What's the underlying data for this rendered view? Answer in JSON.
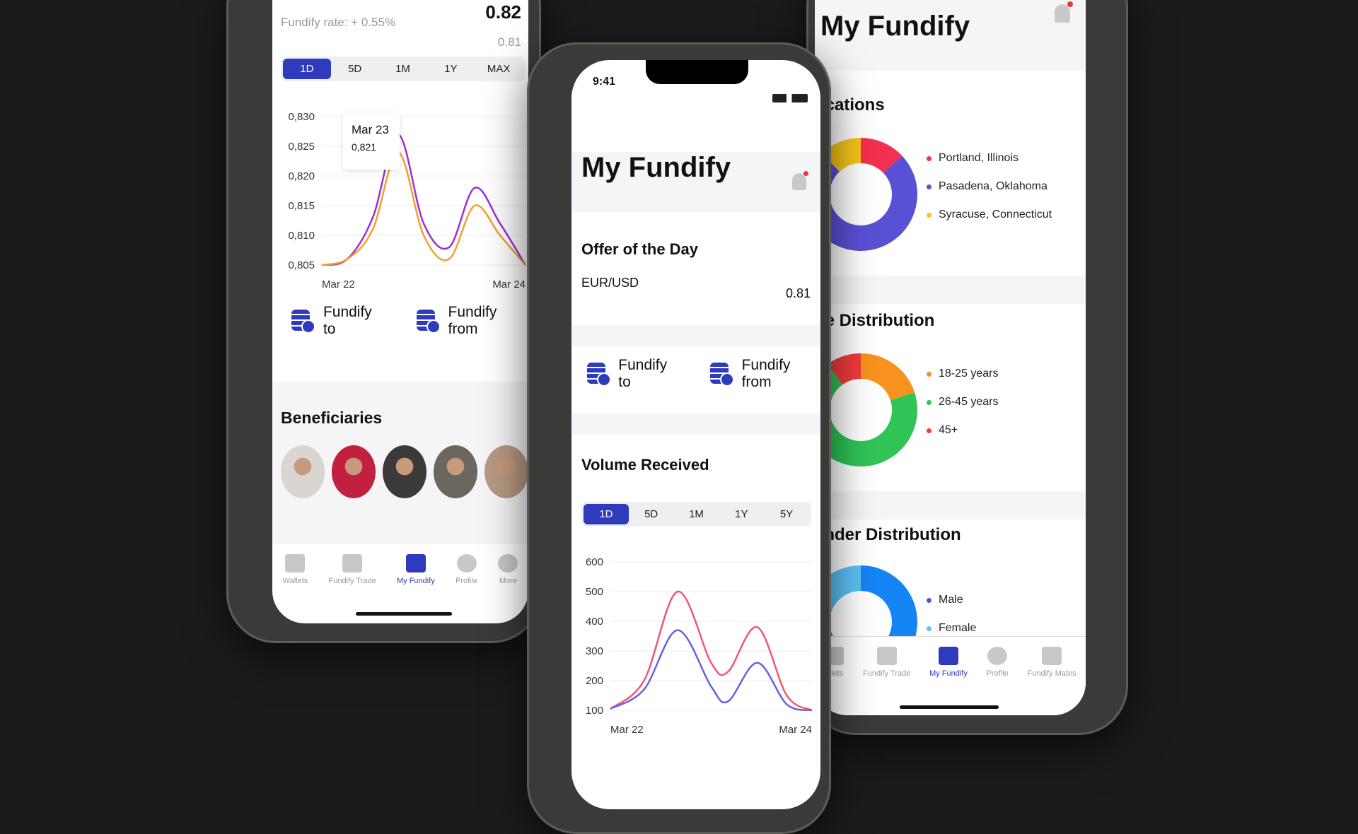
{
  "left_screen": {
    "rate_label": "Fundify rate: + 0.55%",
    "price_main": "0.82",
    "price_sub": "0.81",
    "ranges": [
      "1D",
      "5D",
      "1M",
      "1Y",
      "MAX"
    ],
    "active_range": "1D",
    "tooltip": {
      "date": "Mar 23",
      "value": "0,821"
    },
    "fundify_to": "Fundify to",
    "fundify_from": "Fundify from",
    "beneficiaries_title": "Beneficiaries",
    "avatar_colors": [
      "#d9d6d2",
      "#c2203f",
      "#3b3a38",
      "#6b6660",
      "#b79a83"
    ],
    "nav": [
      {
        "label": "Wallets",
        "icon": "wallet-icon"
      },
      {
        "label": "Fundify Trade",
        "icon": "gavel-icon"
      },
      {
        "label": "My Fundify",
        "icon": "dashboard-icon",
        "active": true
      },
      {
        "label": "Profile",
        "icon": "profile-icon"
      },
      {
        "label": "More",
        "icon": "more-icon"
      }
    ]
  },
  "middle_screen": {
    "time": "9:41",
    "title": "My Fundify",
    "offer_title": "Offer of the Day",
    "pair": "EUR/USD",
    "pair_value": "0.81",
    "fundify_to": "Fundify to",
    "fundify_from": "Fundify from",
    "volume_title": "Volume Received",
    "ranges": [
      "1D",
      "5D",
      "1M",
      "1Y",
      "5Y"
    ],
    "active_range": "1D"
  },
  "right_screen": {
    "title": "My Fundify",
    "locations_title": "ocations",
    "age_title": "ge Distribution",
    "gender_title": "ender Distribution",
    "nav": [
      {
        "label": "allets",
        "icon": "wallet-icon"
      },
      {
        "label": "Fundify Trade",
        "icon": "gavel-icon"
      },
      {
        "label": "My Fundify",
        "icon": "dashboard-icon",
        "active": true
      },
      {
        "label": "Profile",
        "icon": "profile-icon"
      },
      {
        "label": "Fundify Mates",
        "icon": "network-icon"
      }
    ]
  },
  "colors": {
    "accent": "#2f3bbd",
    "notification": "#e53935"
  },
  "chart_data": [
    {
      "type": "line",
      "title": "",
      "ylim": [
        0.805,
        0.83
      ],
      "yticks": [
        "0,830",
        "0,825",
        "0,820",
        "0,815",
        "0,810",
        "0,805"
      ],
      "xticks": [
        "Mar 22",
        "Mar 24"
      ],
      "x": [
        "Mar 22 00:00",
        "Mar 22 06:00",
        "Mar 22 12:00",
        "Mar 22 18:00",
        "Mar 23 00:00",
        "Mar 23 06:00",
        "Mar 23 12:00",
        "Mar 23 18:00",
        "Mar 24 00:00"
      ],
      "series": [
        {
          "color": "#9b30d9",
          "values": [
            0.805,
            0.806,
            0.813,
            0.827,
            0.812,
            0.808,
            0.818,
            0.812,
            0.805
          ]
        },
        {
          "color": "#f0a030",
          "values": [
            0.805,
            0.806,
            0.811,
            0.824,
            0.81,
            0.806,
            0.815,
            0.81,
            0.805
          ]
        }
      ]
    },
    {
      "type": "line",
      "title": "",
      "ylim": [
        100,
        600
      ],
      "yticks": [
        "600",
        "500",
        "400",
        "300",
        "200",
        "100"
      ],
      "xticks": [
        "Mar 22",
        "Mar 24"
      ],
      "x": [
        "Mar 22 00:00",
        "Mar 22 08:00",
        "Mar 22 16:00",
        "Mar 23 00:00",
        "Mar 23 04:00",
        "Mar 23 11:00",
        "Mar 23 18:00",
        "Mar 24 00:00"
      ],
      "series": [
        {
          "color": "#f0567a",
          "values": [
            105,
            200,
            500,
            260,
            230,
            380,
            150,
            100
          ]
        },
        {
          "color": "#6a5fe0",
          "values": [
            105,
            170,
            370,
            180,
            130,
            260,
            120,
            100
          ]
        }
      ]
    },
    {
      "type": "pie",
      "title": "ocations",
      "categories": [
        "Portland, Illinois",
        "Pasadena, Oklahoma",
        "Syracuse, Connecticut"
      ],
      "values": [
        13,
        75,
        12
      ],
      "colors": [
        "#f2304f",
        "#5a50d6",
        "#f7c51a"
      ]
    },
    {
      "type": "pie",
      "title": "ge Distribution",
      "categories": [
        "18-25 years",
        "26-45 years",
        "45+"
      ],
      "values": [
        20,
        70,
        10
      ],
      "colors": [
        "#f7931e",
        "#2fc455",
        "#f03b3b"
      ]
    },
    {
      "type": "pie",
      "title": "ender Distribution",
      "categories": [
        "Male",
        "Female"
      ],
      "values": [
        75,
        25
      ],
      "colors": [
        "#1584f5",
        "#5cc2f7"
      ],
      "legend_colors": [
        "#5a50d6",
        "#5cc2f7"
      ]
    }
  ]
}
